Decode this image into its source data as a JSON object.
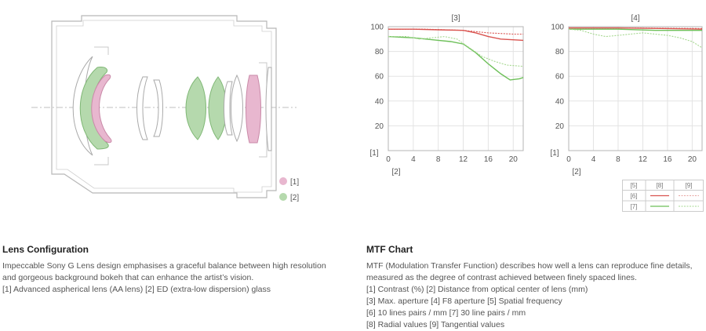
{
  "lens_diagram": {
    "legend": [
      {
        "label": "[1]",
        "color": "#e8b7cf"
      },
      {
        "label": "[2]",
        "color": "#b5d9ad"
      }
    ]
  },
  "chart_data": [
    {
      "type": "line",
      "title": "[3]",
      "ylabel": "[1]",
      "xlabel": "[2]",
      "xlim": [
        0,
        21.6
      ],
      "ylim": [
        0,
        100
      ],
      "x_ticks": [
        0,
        4,
        8,
        12,
        16,
        20
      ],
      "y_ticks": [
        20,
        40,
        60,
        80,
        100
      ],
      "series": [
        {
          "name": "[6] [8]",
          "color": "#d9534f",
          "dash": false,
          "points": [
            [
              0,
              98
            ],
            [
              4,
              98
            ],
            [
              8,
              97.5
            ],
            [
              12,
              97
            ],
            [
              14,
              95
            ],
            [
              16,
              92
            ],
            [
              18,
              90
            ],
            [
              21.6,
              89
            ]
          ]
        },
        {
          "name": "[6] [9]",
          "color": "#d9534f",
          "dash": true,
          "points": [
            [
              0,
              98
            ],
            [
              6,
              98
            ],
            [
              12,
              97
            ],
            [
              16,
              95
            ],
            [
              20,
              94
            ],
            [
              21.6,
              94
            ]
          ]
        },
        {
          "name": "[7] [8]",
          "color": "#6cbf58",
          "dash": false,
          "points": [
            [
              0,
              92
            ],
            [
              4,
              91
            ],
            [
              8,
              89
            ],
            [
              10,
              88
            ],
            [
              12,
              86
            ],
            [
              14,
              79
            ],
            [
              16,
              70
            ],
            [
              18,
              62
            ],
            [
              19.5,
              57
            ],
            [
              21,
              58
            ],
            [
              21.6,
              59
            ]
          ]
        },
        {
          "name": "[7] [9]",
          "color": "#a6d890",
          "dash": true,
          "points": [
            [
              0,
              92
            ],
            [
              3,
              92
            ],
            [
              5,
              90
            ],
            [
              7,
              91
            ],
            [
              9,
              92
            ],
            [
              11,
              90
            ],
            [
              13,
              83
            ],
            [
              15,
              76
            ],
            [
              17,
              72
            ],
            [
              19,
              69
            ],
            [
              21.6,
              68
            ]
          ]
        }
      ]
    },
    {
      "type": "line",
      "title": "[4]",
      "ylabel": "[1]",
      "xlabel": "[2]",
      "xlim": [
        0,
        21.6
      ],
      "ylim": [
        0,
        100
      ],
      "x_ticks": [
        0,
        4,
        8,
        12,
        16,
        20
      ],
      "y_ticks": [
        20,
        40,
        60,
        80,
        100
      ],
      "series": [
        {
          "name": "[6] [8]",
          "color": "#d9534f",
          "dash": false,
          "points": [
            [
              0,
              99
            ],
            [
              8,
              99
            ],
            [
              16,
              98.5
            ],
            [
              21.6,
              98
            ]
          ]
        },
        {
          "name": "[6] [9]",
          "color": "#d9534f",
          "dash": true,
          "points": [
            [
              0,
              99
            ],
            [
              10,
              99
            ],
            [
              21.6,
              98.5
            ]
          ]
        },
        {
          "name": "[7] [8]",
          "color": "#6cbf58",
          "dash": false,
          "points": [
            [
              0,
              98
            ],
            [
              8,
              98
            ],
            [
              14,
              97
            ],
            [
              21.6,
              97
            ]
          ]
        },
        {
          "name": "[7] [9]",
          "color": "#a6d890",
          "dash": true,
          "points": [
            [
              0,
              98
            ],
            [
              2,
              97
            ],
            [
              4,
              94
            ],
            [
              6,
              92
            ],
            [
              8,
              93
            ],
            [
              10,
              94
            ],
            [
              12,
              95
            ],
            [
              14,
              94
            ],
            [
              16,
              93
            ],
            [
              18,
              91
            ],
            [
              20,
              88
            ],
            [
              21.6,
              83
            ]
          ]
        }
      ]
    }
  ],
  "mtf_legend": {
    "headers": [
      "[5]",
      "[8]",
      "[9]"
    ],
    "rows": [
      {
        "label": "[6]",
        "color": "#d9534f"
      },
      {
        "label": "[7]",
        "color": "#6cbf58"
      }
    ]
  },
  "lens_config": {
    "title": "Lens Configuration",
    "lines": [
      "Impeccable Sony G Lens design emphasises a graceful balance between high resolution",
      "and gorgeous background bokeh that can enhance the artist’s vision.",
      "[1] Advanced aspherical lens (AA lens)  [2] ED (extra-low dispersion) glass"
    ]
  },
  "mtf_chart": {
    "title": "MTF Chart",
    "lines": [
      "MTF (Modulation Transfer Function) describes how well a lens can reproduce fine details,",
      "measured as the degree of contrast achieved between finely spaced lines.",
      "[1] Contrast (%)  [2] Distance from optical center of lens (mm)",
      "[3] Max. aperture  [4] F8 aperture  [5] Spatial frequency",
      "[6] 10 lines pairs / mm  [7] 30 line pairs / mm",
      "[8] Radial values  [9] Tangential values"
    ]
  }
}
